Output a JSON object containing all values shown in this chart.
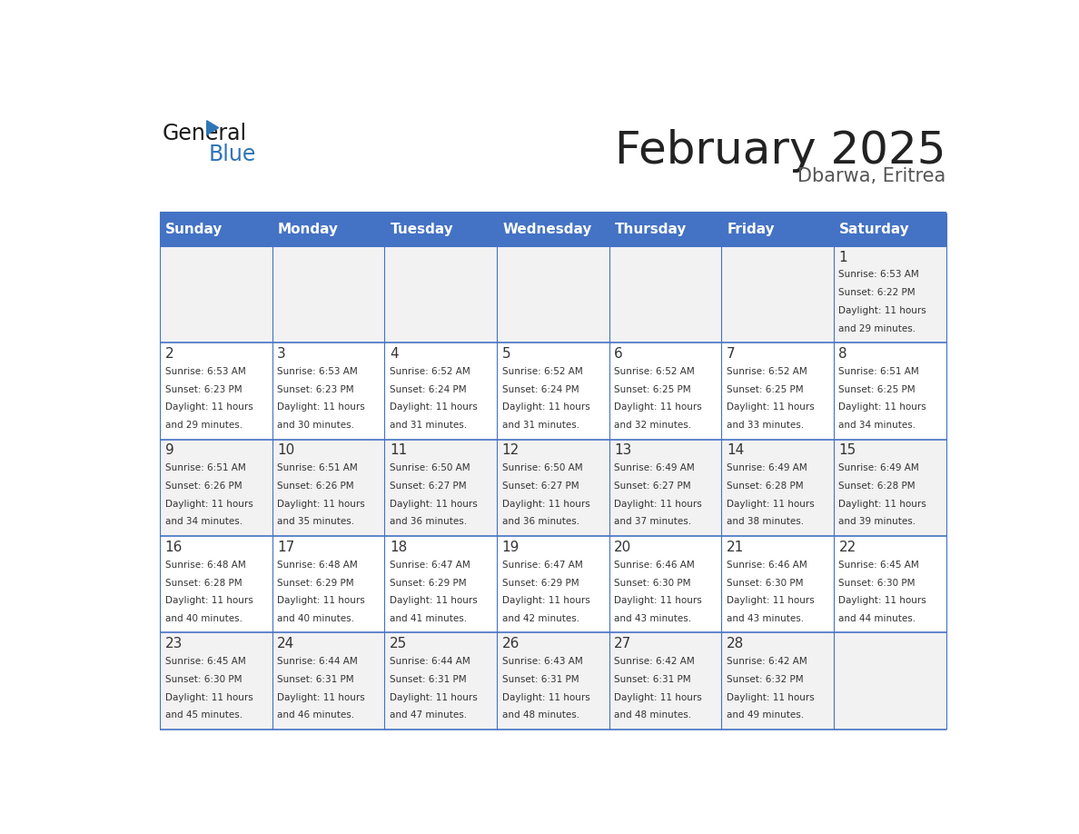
{
  "title": "February 2025",
  "subtitle": "Dbarwa, Eritrea",
  "days_of_week": [
    "Sunday",
    "Monday",
    "Tuesday",
    "Wednesday",
    "Thursday",
    "Friday",
    "Saturday"
  ],
  "header_bg": "#4472C4",
  "header_text": "#FFFFFF",
  "cell_bg_odd": "#F2F2F2",
  "cell_bg_even": "#FFFFFF",
  "border_color": "#4472C4",
  "day_number_color": "#333333",
  "info_text_color": "#333333",
  "title_color": "#222222",
  "subtitle_color": "#555555",
  "blue_text": "#2E75B6",
  "calendar_data": [
    [
      null,
      null,
      null,
      null,
      null,
      null,
      1
    ],
    [
      2,
      3,
      4,
      5,
      6,
      7,
      8
    ],
    [
      9,
      10,
      11,
      12,
      13,
      14,
      15
    ],
    [
      16,
      17,
      18,
      19,
      20,
      21,
      22
    ],
    [
      23,
      24,
      25,
      26,
      27,
      28,
      null
    ]
  ],
  "sunrise_data": {
    "1": {
      "sunrise": "6:53 AM",
      "sunset": "6:22 PM",
      "daylight": "11 hours and 29 minutes."
    },
    "2": {
      "sunrise": "6:53 AM",
      "sunset": "6:23 PM",
      "daylight": "11 hours and 29 minutes."
    },
    "3": {
      "sunrise": "6:53 AM",
      "sunset": "6:23 PM",
      "daylight": "11 hours and 30 minutes."
    },
    "4": {
      "sunrise": "6:52 AM",
      "sunset": "6:24 PM",
      "daylight": "11 hours and 31 minutes."
    },
    "5": {
      "sunrise": "6:52 AM",
      "sunset": "6:24 PM",
      "daylight": "11 hours and 31 minutes."
    },
    "6": {
      "sunrise": "6:52 AM",
      "sunset": "6:25 PM",
      "daylight": "11 hours and 32 minutes."
    },
    "7": {
      "sunrise": "6:52 AM",
      "sunset": "6:25 PM",
      "daylight": "11 hours and 33 minutes."
    },
    "8": {
      "sunrise": "6:51 AM",
      "sunset": "6:25 PM",
      "daylight": "11 hours and 34 minutes."
    },
    "9": {
      "sunrise": "6:51 AM",
      "sunset": "6:26 PM",
      "daylight": "11 hours and 34 minutes."
    },
    "10": {
      "sunrise": "6:51 AM",
      "sunset": "6:26 PM",
      "daylight": "11 hours and 35 minutes."
    },
    "11": {
      "sunrise": "6:50 AM",
      "sunset": "6:27 PM",
      "daylight": "11 hours and 36 minutes."
    },
    "12": {
      "sunrise": "6:50 AM",
      "sunset": "6:27 PM",
      "daylight": "11 hours and 36 minutes."
    },
    "13": {
      "sunrise": "6:49 AM",
      "sunset": "6:27 PM",
      "daylight": "11 hours and 37 minutes."
    },
    "14": {
      "sunrise": "6:49 AM",
      "sunset": "6:28 PM",
      "daylight": "11 hours and 38 minutes."
    },
    "15": {
      "sunrise": "6:49 AM",
      "sunset": "6:28 PM",
      "daylight": "11 hours and 39 minutes."
    },
    "16": {
      "sunrise": "6:48 AM",
      "sunset": "6:28 PM",
      "daylight": "11 hours and 40 minutes."
    },
    "17": {
      "sunrise": "6:48 AM",
      "sunset": "6:29 PM",
      "daylight": "11 hours and 40 minutes."
    },
    "18": {
      "sunrise": "6:47 AM",
      "sunset": "6:29 PM",
      "daylight": "11 hours and 41 minutes."
    },
    "19": {
      "sunrise": "6:47 AM",
      "sunset": "6:29 PM",
      "daylight": "11 hours and 42 minutes."
    },
    "20": {
      "sunrise": "6:46 AM",
      "sunset": "6:30 PM",
      "daylight": "11 hours and 43 minutes."
    },
    "21": {
      "sunrise": "6:46 AM",
      "sunset": "6:30 PM",
      "daylight": "11 hours and 43 minutes."
    },
    "22": {
      "sunrise": "6:45 AM",
      "sunset": "6:30 PM",
      "daylight": "11 hours and 44 minutes."
    },
    "23": {
      "sunrise": "6:45 AM",
      "sunset": "6:30 PM",
      "daylight": "11 hours and 45 minutes."
    },
    "24": {
      "sunrise": "6:44 AM",
      "sunset": "6:31 PM",
      "daylight": "11 hours and 46 minutes."
    },
    "25": {
      "sunrise": "6:44 AM",
      "sunset": "6:31 PM",
      "daylight": "11 hours and 47 minutes."
    },
    "26": {
      "sunrise": "6:43 AM",
      "sunset": "6:31 PM",
      "daylight": "11 hours and 48 minutes."
    },
    "27": {
      "sunrise": "6:42 AM",
      "sunset": "6:31 PM",
      "daylight": "11 hours and 48 minutes."
    },
    "28": {
      "sunrise": "6:42 AM",
      "sunset": "6:32 PM",
      "daylight": "11 hours and 49 minutes."
    }
  }
}
